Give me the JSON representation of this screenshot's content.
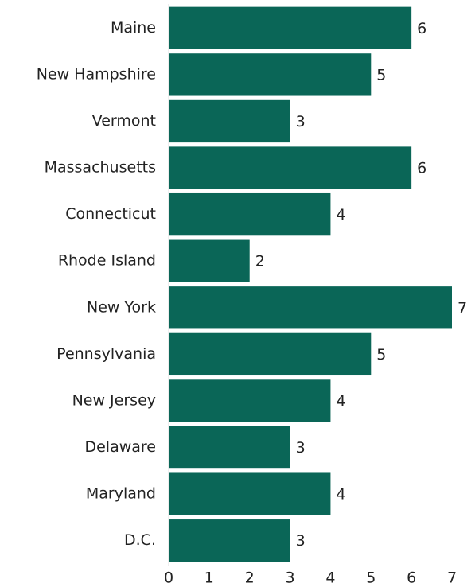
{
  "chart_data": {
    "type": "bar",
    "orientation": "horizontal",
    "categories": [
      "Maine",
      "New Hampshire",
      "Vermont",
      "Massachusetts",
      "Connecticut",
      "Rhode Island",
      "New York",
      "Pennsylvania",
      "New Jersey",
      "Delaware",
      "Maryland",
      "D.C."
    ],
    "values": [
      6,
      5,
      3,
      6,
      4,
      2,
      7,
      5,
      4,
      3,
      4,
      3
    ],
    "color": "#0a6657",
    "xlim": [
      0,
      7
    ],
    "xticks": [
      0,
      1,
      2,
      3,
      4,
      5,
      6,
      7
    ],
    "grid": false
  }
}
